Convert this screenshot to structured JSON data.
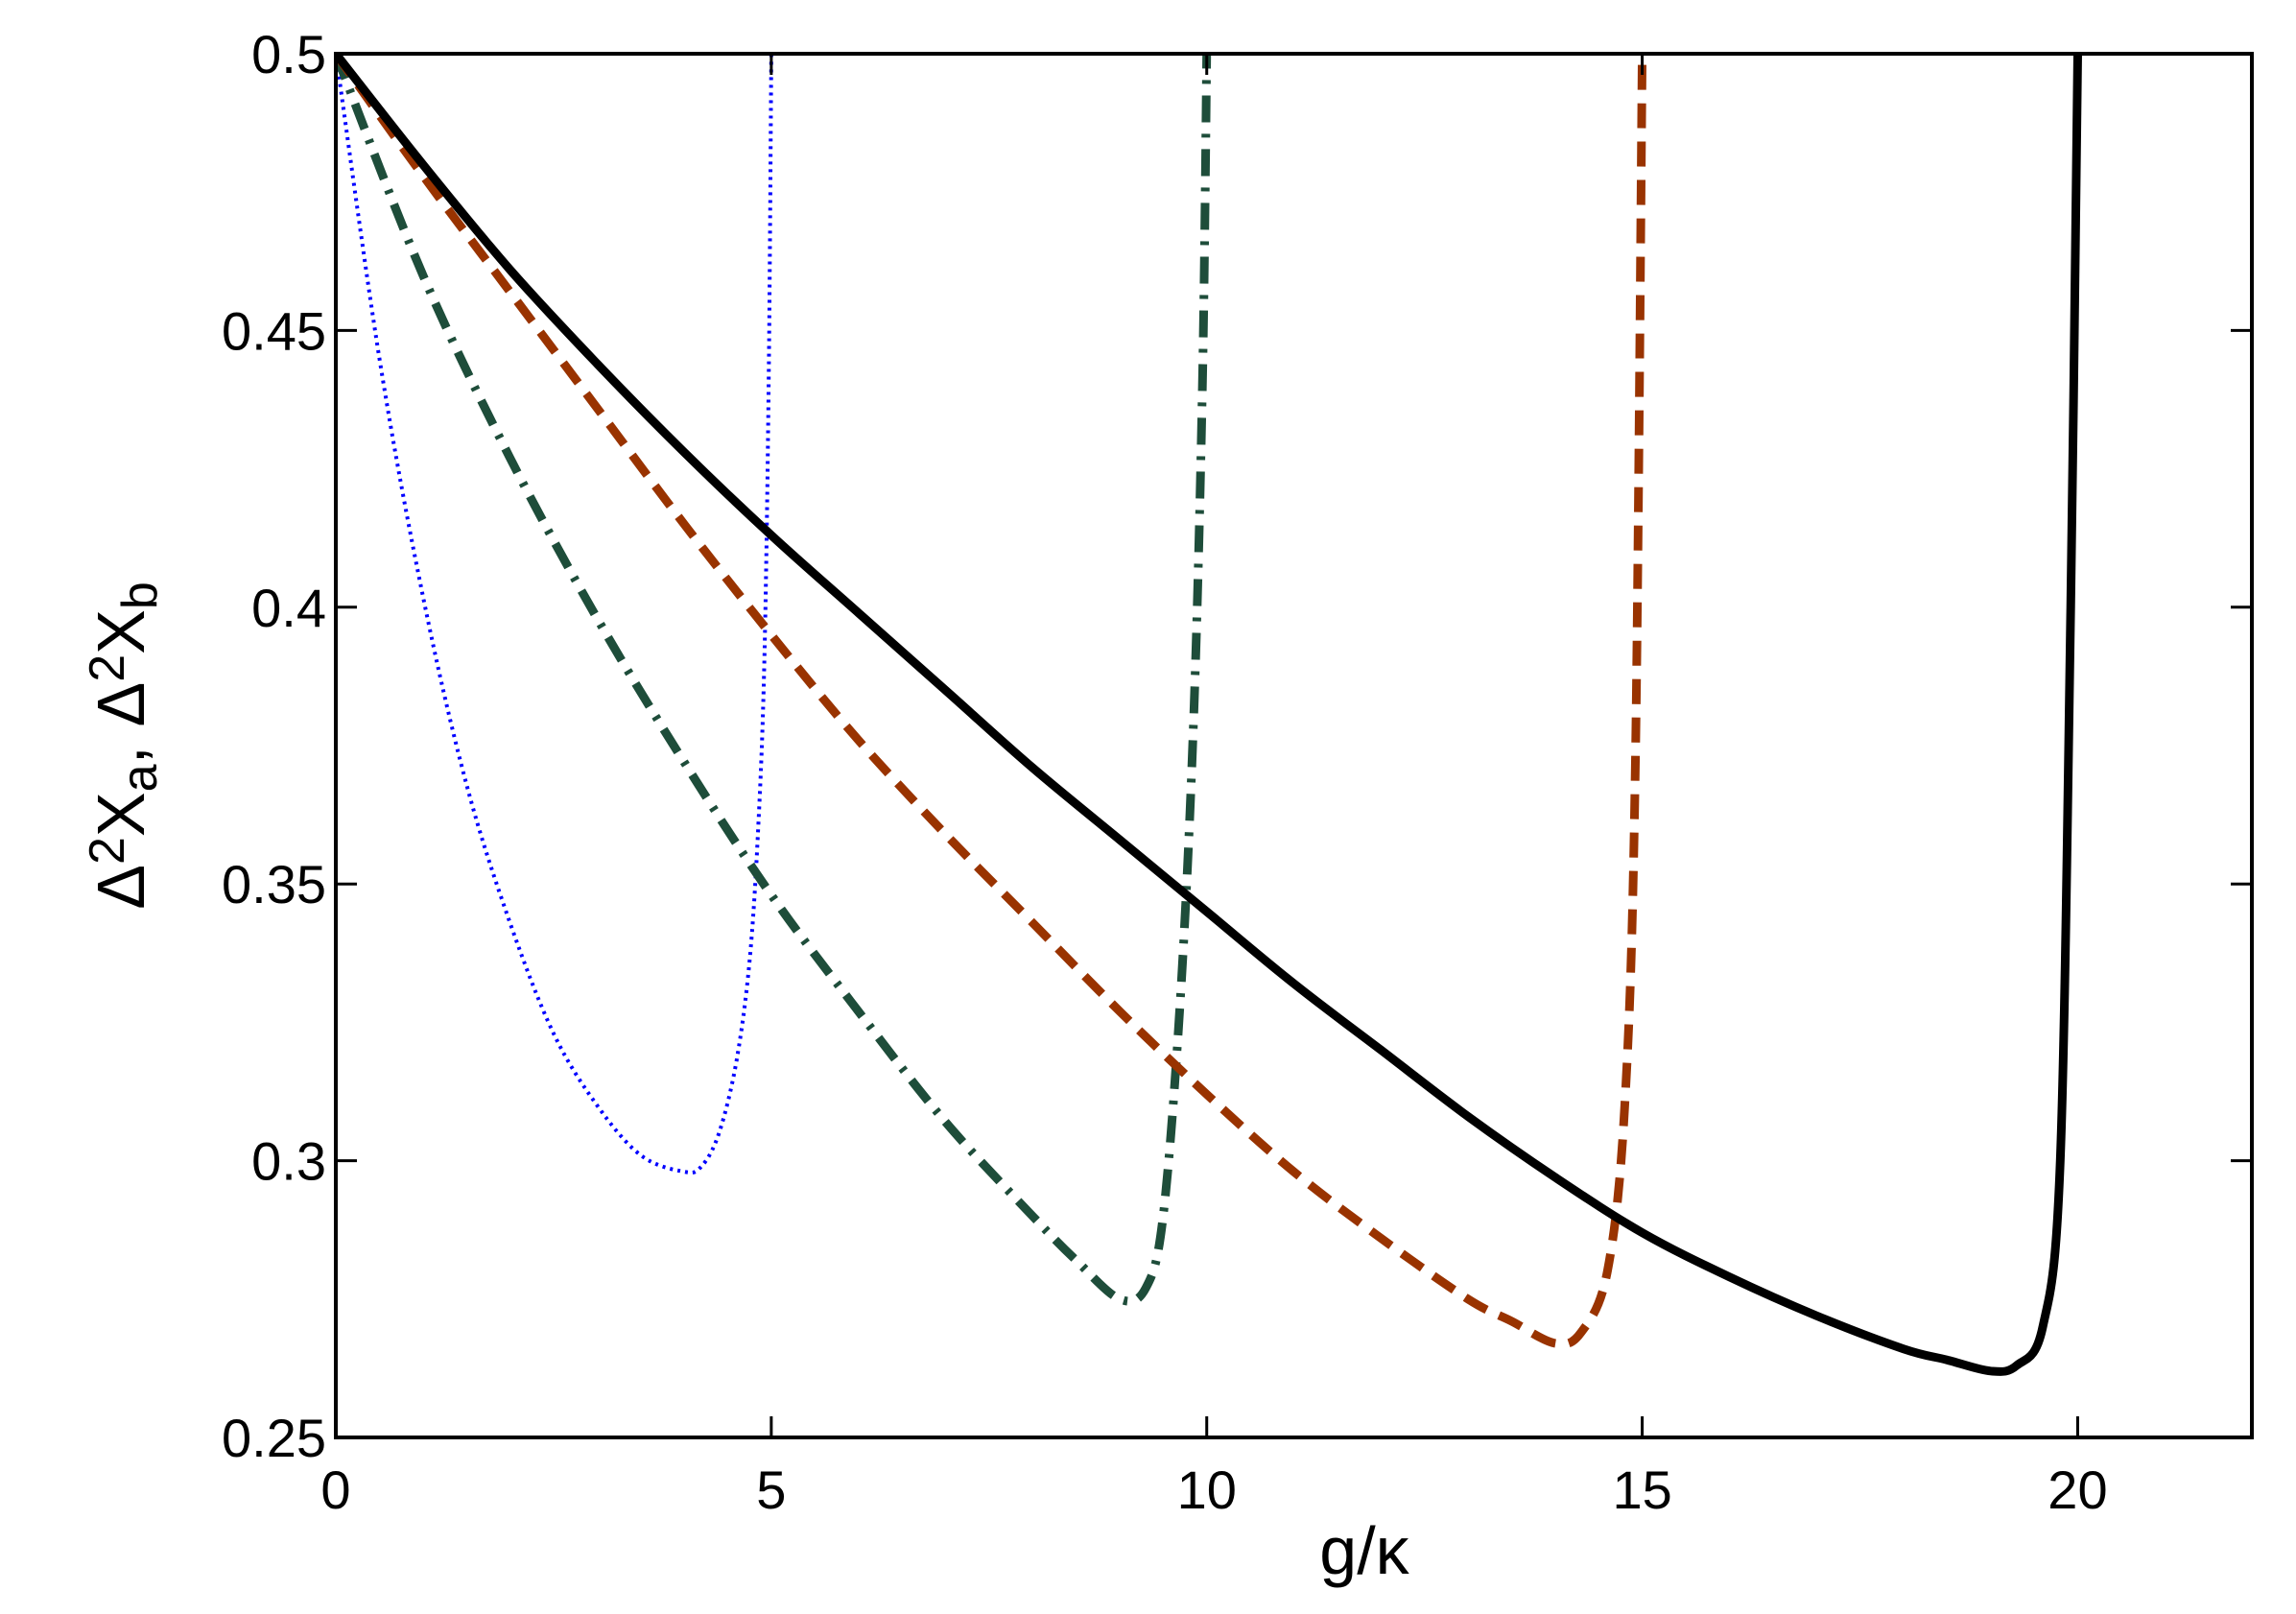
{
  "chart_data": {
    "type": "line",
    "xlabel": "g/κ",
    "ylabel": {
      "parts": [
        "Δ",
        "2",
        "X",
        "a",
        ", Δ",
        "2",
        "X",
        "b"
      ]
    },
    "xlim": [
      0,
      22
    ],
    "ylim": [
      0.25,
      0.5
    ],
    "x_ticks": [
      0,
      5,
      10,
      15,
      20
    ],
    "x_tick_labels": [
      "0",
      "5",
      "10",
      "15",
      "20"
    ],
    "y_ticks": [
      0.25,
      0.3,
      0.35,
      0.4,
      0.45,
      0.5
    ],
    "y_tick_labels": [
      "0.25",
      "0.3",
      "0.35",
      "0.4",
      "0.45",
      "0.5"
    ],
    "grid": false,
    "legend": "none",
    "series": [
      {
        "color": "#0000ff",
        "style": "dotted",
        "x": [
          0,
          0.5,
          1,
          1.5,
          2,
          2.5,
          3,
          3.5,
          4,
          4.2,
          4.4,
          4.6,
          4.75,
          4.85,
          4.92,
          4.97,
          5.0
        ],
        "y": [
          0.5,
          0.445,
          0.402,
          0.368,
          0.343,
          0.323,
          0.31,
          0.301,
          0.298,
          0.299,
          0.305,
          0.318,
          0.336,
          0.36,
          0.39,
          0.44,
          0.5
        ]
      },
      {
        "color": "#1e4d3a",
        "style": "dashdot",
        "x": [
          0,
          1,
          2,
          3,
          4,
          5,
          6,
          7,
          8,
          8.5,
          9,
          9.3,
          9.5,
          9.7,
          9.85,
          9.95,
          10.0
        ],
        "y": [
          0.5,
          0.46,
          0.427,
          0.398,
          0.372,
          0.348,
          0.327,
          0.307,
          0.29,
          0.282,
          0.275,
          0.277,
          0.29,
          0.33,
          0.38,
          0.44,
          0.5
        ]
      },
      {
        "color": "#993300",
        "style": "dashed",
        "x": [
          0,
          1,
          2,
          3,
          4,
          5,
          6,
          7,
          8,
          9,
          10,
          11,
          12,
          13,
          13.5,
          14,
          14.3,
          14.6,
          14.8,
          14.92,
          15.0
        ],
        "y": [
          0.5,
          0.478,
          0.457,
          0.436,
          0.415,
          0.395,
          0.376,
          0.359,
          0.343,
          0.327,
          0.312,
          0.298,
          0.286,
          0.275,
          0.271,
          0.267,
          0.269,
          0.28,
          0.31,
          0.37,
          0.5
        ]
      },
      {
        "color": "#000000",
        "style": "solid",
        "x": [
          0,
          1,
          2,
          3,
          4,
          5,
          6,
          7,
          8,
          9,
          10,
          11,
          12,
          13,
          14,
          15,
          16,
          17,
          18,
          18.5,
          19,
          19.3,
          19.6,
          19.8,
          19.92,
          20.0
        ],
        "y": [
          0.5,
          0.48,
          0.461,
          0.444,
          0.428,
          0.413,
          0.399,
          0.385,
          0.371,
          0.358,
          0.345,
          0.332,
          0.32,
          0.308,
          0.297,
          0.287,
          0.279,
          0.272,
          0.266,
          0.264,
          0.262,
          0.263,
          0.27,
          0.3,
          0.4,
          0.5
        ]
      }
    ]
  }
}
